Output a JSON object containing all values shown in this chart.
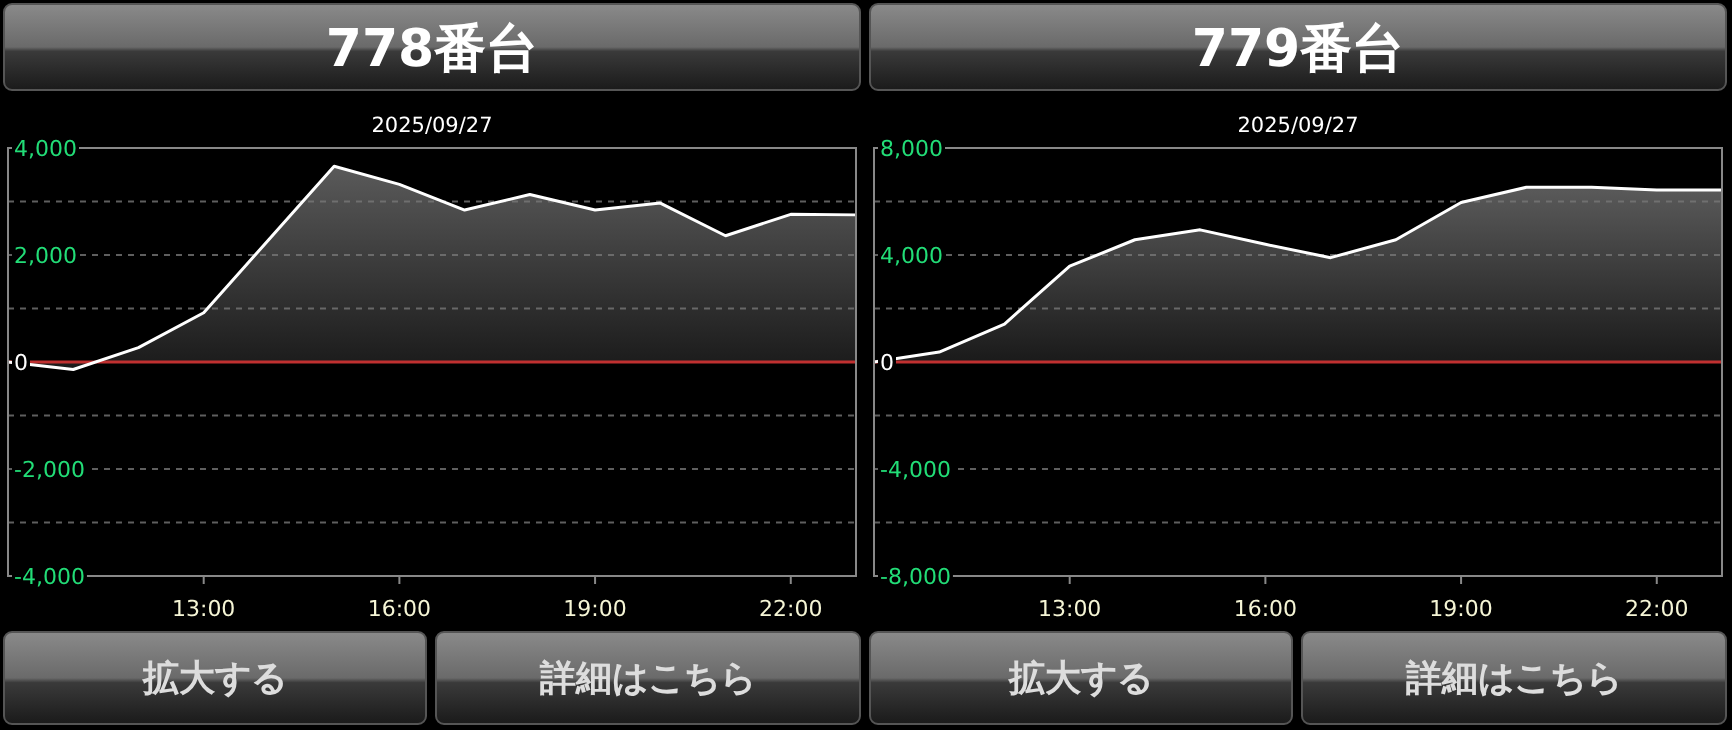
{
  "chart_data": [
    {
      "type": "area",
      "title": "778番台",
      "subtitle": "2025/09/27",
      "color": "#5a5a5a",
      "x": [
        10,
        11,
        12,
        13,
        14,
        15,
        16,
        17,
        18,
        19,
        20,
        21,
        22,
        23
      ],
      "values": [
        0,
        -140,
        270,
        920,
        2290,
        3660,
        3320,
        2840,
        3130,
        2840,
        2970,
        2360,
        2760,
        2750
      ],
      "xlim": [
        10,
        23
      ],
      "xticks": [
        {
          "value": 13,
          "label": "13:00"
        },
        {
          "value": 16,
          "label": "16:00"
        },
        {
          "value": 19,
          "label": "19:00"
        },
        {
          "value": 22,
          "label": "22:00"
        }
      ],
      "ylim": [
        -4000,
        4000
      ],
      "yticks": [
        {
          "value": -4000,
          "label": "-4,000"
        },
        {
          "value": -3000,
          "label": null
        },
        {
          "value": -2000,
          "label": "-2,000"
        },
        {
          "value": -1000,
          "label": null
        },
        {
          "value": 0,
          "label": "0"
        },
        {
          "value": 1000,
          "label": null
        },
        {
          "value": 2000,
          "label": "2,000"
        },
        {
          "value": 3000,
          "label": null
        },
        {
          "value": 4000,
          "label": "4,000"
        }
      ],
      "grid": "y",
      "ref_lines": [
        {
          "axis": "y",
          "value": 0,
          "color": "#c03030"
        }
      ],
      "annotations": [
        "拡大する",
        "詳細はこちら"
      ]
    },
    {
      "type": "area",
      "title": "779番台",
      "subtitle": "2025/09/27",
      "color": "#5a5a5a",
      "x": [
        10,
        11,
        12,
        13,
        14,
        15,
        16,
        17,
        18,
        19,
        20,
        21,
        22,
        23
      ],
      "values": [
        0,
        370,
        1420,
        3580,
        4570,
        4940,
        4400,
        3900,
        4570,
        5960,
        6530,
        6530,
        6430,
        6430
      ],
      "xlim": [
        10,
        23
      ],
      "xticks": [
        {
          "value": 13,
          "label": "13:00"
        },
        {
          "value": 16,
          "label": "16:00"
        },
        {
          "value": 19,
          "label": "19:00"
        },
        {
          "value": 22,
          "label": "22:00"
        }
      ],
      "ylim": [
        -8000,
        8000
      ],
      "yticks": [
        {
          "value": -8000,
          "label": "-8,000"
        },
        {
          "value": -6000,
          "label": null
        },
        {
          "value": -4000,
          "label": "-4,000"
        },
        {
          "value": -2000,
          "label": null
        },
        {
          "value": 0,
          "label": "0"
        },
        {
          "value": 2000,
          "label": null
        },
        {
          "value": 4000,
          "label": "4,000"
        },
        {
          "value": 6000,
          "label": null
        },
        {
          "value": 8000,
          "label": "8,000"
        }
      ],
      "grid": "y",
      "ref_lines": [
        {
          "axis": "y",
          "value": 0,
          "color": "#c03030"
        }
      ],
      "annotations": [
        "拡大する",
        "詳細はこちら"
      ]
    }
  ]
}
